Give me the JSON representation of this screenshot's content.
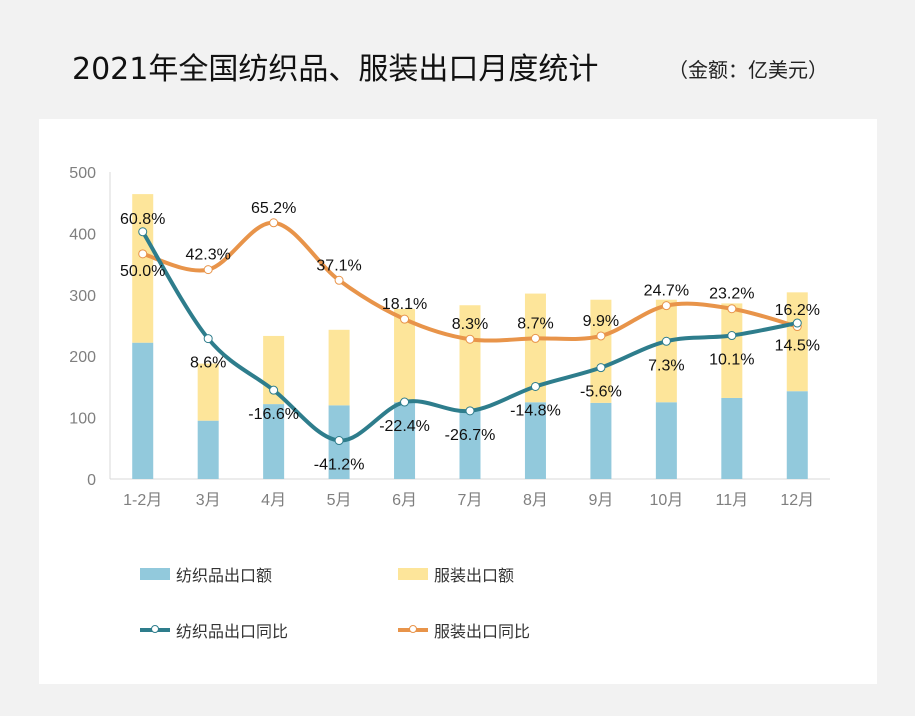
{
  "title": "2021年全国纺织品、服装出口月度统计",
  "unit": "（金额：亿美元）",
  "colors": {
    "textile_bar": "#92c9dc",
    "apparel_bar": "#fde59a",
    "textile_line": "#2e7d8c",
    "apparel_line": "#e8944a"
  },
  "chart_data": {
    "type": "bar+line",
    "categories": [
      "1-2月",
      "3月",
      "4月",
      "5月",
      "6月",
      "7月",
      "8月",
      "9月",
      "10月",
      "11月",
      "12月"
    ],
    "ylim": [
      0,
      500
    ],
    "yticks": [
      0,
      100,
      200,
      300,
      400,
      500
    ],
    "secondary_ylim_percent": [
      -60,
      90
    ],
    "stacked": true,
    "grid": false,
    "legend_position": "bottom",
    "series": [
      {
        "name": "纺织品出口额",
        "type": "bar",
        "values": [
          222,
          95,
          122,
          120,
          125,
          112,
          125,
          124,
          125,
          132,
          143
        ]
      },
      {
        "name": "服装出口额",
        "type": "bar",
        "values": [
          242,
          93,
          111,
          123,
          152,
          171,
          177,
          168,
          167,
          154,
          161
        ]
      },
      {
        "name": "纺织品出口同比",
        "type": "line",
        "values": [
          60.8,
          8.6,
          -16.6,
          -41.2,
          -22.4,
          -26.7,
          -14.8,
          -5.6,
          7.3,
          10.1,
          16.2
        ],
        "labels": [
          "60.8%",
          "8.6%",
          "-16.6%",
          "-41.2%",
          "-22.4%",
          "-26.7%",
          "-14.8%",
          "-5.6%",
          "7.3%",
          "10.1%",
          "16.2%"
        ]
      },
      {
        "name": "服装出口同比",
        "type": "line",
        "values": [
          50.0,
          42.3,
          65.2,
          37.1,
          18.1,
          8.3,
          8.7,
          9.9,
          24.7,
          23.2,
          14.5
        ],
        "labels": [
          "50.0%",
          "42.3%",
          "65.2%",
          "37.1%",
          "18.1%",
          "8.3%",
          "8.7%",
          "9.9%",
          "24.7%",
          "23.2%",
          "14.5%"
        ]
      }
    ]
  }
}
